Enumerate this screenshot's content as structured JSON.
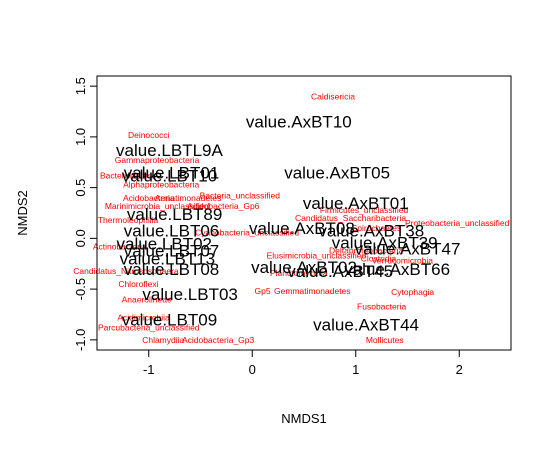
{
  "chart_data": {
    "type": "scatter",
    "xlabel": "NMDS1",
    "ylabel": "NMDS2",
    "xlim": [
      -1.5,
      2.5
    ],
    "ylim": [
      -1.1,
      1.6
    ],
    "x_ticks": [
      -1,
      0,
      1,
      2
    ],
    "y_ticks": [
      -1.0,
      -0.5,
      0.0,
      0.5,
      1.0,
      1.5
    ],
    "grid": false,
    "legend": "none",
    "taxa_color": "#ff0000",
    "samples_color": "#000000",
    "samples": [
      {
        "label": "value.AxBT10",
        "x": 0.45,
        "y": 1.15
      },
      {
        "label": "value.LBTL9A",
        "x": -0.8,
        "y": 0.87
      },
      {
        "label": "value.LBT01",
        "x": -0.78,
        "y": 0.65
      },
      {
        "label": "value.LBT10",
        "x": -0.8,
        "y": 0.62
      },
      {
        "label": "value.AxBT05",
        "x": 0.82,
        "y": 0.65
      },
      {
        "label": "value.AxBT01",
        "x": 1.0,
        "y": 0.35
      },
      {
        "label": "value.LBT89",
        "x": -0.75,
        "y": 0.24
      },
      {
        "label": "value.LBT06",
        "x": -0.78,
        "y": 0.08
      },
      {
        "label": "value.AxBT08",
        "x": 0.48,
        "y": 0.1
      },
      {
        "label": "value.AxBT38",
        "x": 1.15,
        "y": 0.08
      },
      {
        "label": "value.LBT02",
        "x": -0.85,
        "y": -0.05
      },
      {
        "label": "value.LBT07",
        "x": -0.78,
        "y": -0.12
      },
      {
        "label": "value.LBT13",
        "x": -0.82,
        "y": -0.2
      },
      {
        "label": "value.AxBT39",
        "x": 1.28,
        "y": -0.04
      },
      {
        "label": "value.AxBT47",
        "x": 1.5,
        "y": -0.1
      },
      {
        "label": "value.AxBT66",
        "x": 1.4,
        "y": -0.3
      },
      {
        "label": "value.AxBT45",
        "x": 0.85,
        "y": -0.32
      },
      {
        "label": "value.AxBT02",
        "x": 0.5,
        "y": -0.28
      },
      {
        "label": "value.LBT08",
        "x": -0.78,
        "y": -0.3
      },
      {
        "label": "value.LBT03",
        "x": -0.6,
        "y": -0.55
      },
      {
        "label": "value.LBT09",
        "x": -0.8,
        "y": -0.8
      },
      {
        "label": "value.AxBT44",
        "x": 1.1,
        "y": -0.85
      }
    ],
    "taxa": [
      {
        "label": "Caldisericia",
        "x": 0.78,
        "y": 1.4
      },
      {
        "label": "Deinococci",
        "x": -1.0,
        "y": 1.02
      },
      {
        "label": "Gammaproteobacteria",
        "x": -0.92,
        "y": 0.77
      },
      {
        "label": "Bacteroidetes",
        "x": -1.22,
        "y": 0.62
      },
      {
        "label": "Alphaproteobacteria",
        "x": -0.88,
        "y": 0.53
      },
      {
        "label": "Acidobacteria",
        "x": -1.0,
        "y": 0.4
      },
      {
        "label": "Armatimonadetes",
        "x": -0.62,
        "y": 0.4
      },
      {
        "label": "Bacteria_unclassified",
        "x": -0.12,
        "y": 0.42
      },
      {
        "label": "Marinimicrobia_unclassified",
        "x": -0.92,
        "y": 0.32
      },
      {
        "label": "Acidobacteria_Gp6",
        "x": -0.28,
        "y": 0.32
      },
      {
        "label": "Thermoleophilia",
        "x": -1.2,
        "y": 0.18
      },
      {
        "label": "Cyanobacteria_unclassified",
        "x": -0.05,
        "y": 0.06
      },
      {
        "label": "Candidatus_Saccharibacteria",
        "x": 0.95,
        "y": 0.2
      },
      {
        "label": "Firmicutes_unclassified",
        "x": 1.08,
        "y": 0.28
      },
      {
        "label": "Spirochaetes",
        "x": 1.2,
        "y": 0.1
      },
      {
        "label": "Proteobacteria_unclassified",
        "x": 1.98,
        "y": 0.15
      },
      {
        "label": "Elusimicrobia_unclassified",
        "x": 0.62,
        "y": -0.17
      },
      {
        "label": "Candidatus_Nitrososphaera",
        "x": -1.22,
        "y": -0.32
      },
      {
        "label": "Actinobacteria",
        "x": -1.28,
        "y": -0.08
      },
      {
        "label": "Clostridia",
        "x": 1.22,
        "y": -0.2
      },
      {
        "label": "Deltaproteobacteria",
        "x": 1.1,
        "y": -0.12
      },
      {
        "label": "Verrucomicrobia",
        "x": 1.45,
        "y": -0.22
      },
      {
        "label": "Planctomycetia",
        "x": 0.45,
        "y": -0.34
      },
      {
        "label": "Chloroflexi",
        "x": -1.1,
        "y": -0.45
      },
      {
        "label": "Gemmatimonadetes",
        "x": 0.58,
        "y": -0.52
      },
      {
        "label": "Gp5",
        "x": 0.1,
        "y": -0.52
      },
      {
        "label": "Cytophagia",
        "x": 1.55,
        "y": -0.53
      },
      {
        "label": "Fusobacteria",
        "x": 1.25,
        "y": -0.67
      },
      {
        "label": "Acidimicrobiia",
        "x": -1.05,
        "y": -0.78
      },
      {
        "label": "Anaerolineae",
        "x": -1.02,
        "y": -0.6
      },
      {
        "label": "Parcubacteria_unclassified",
        "x": -1.0,
        "y": -0.88
      },
      {
        "label": "Mollicutes",
        "x": 1.28,
        "y": -1.0
      },
      {
        "label": "Chlamydiia",
        "x": -0.86,
        "y": -1.0
      },
      {
        "label": "Acidobacteria_Gp3",
        "x": -0.33,
        "y": -1.0
      }
    ]
  }
}
